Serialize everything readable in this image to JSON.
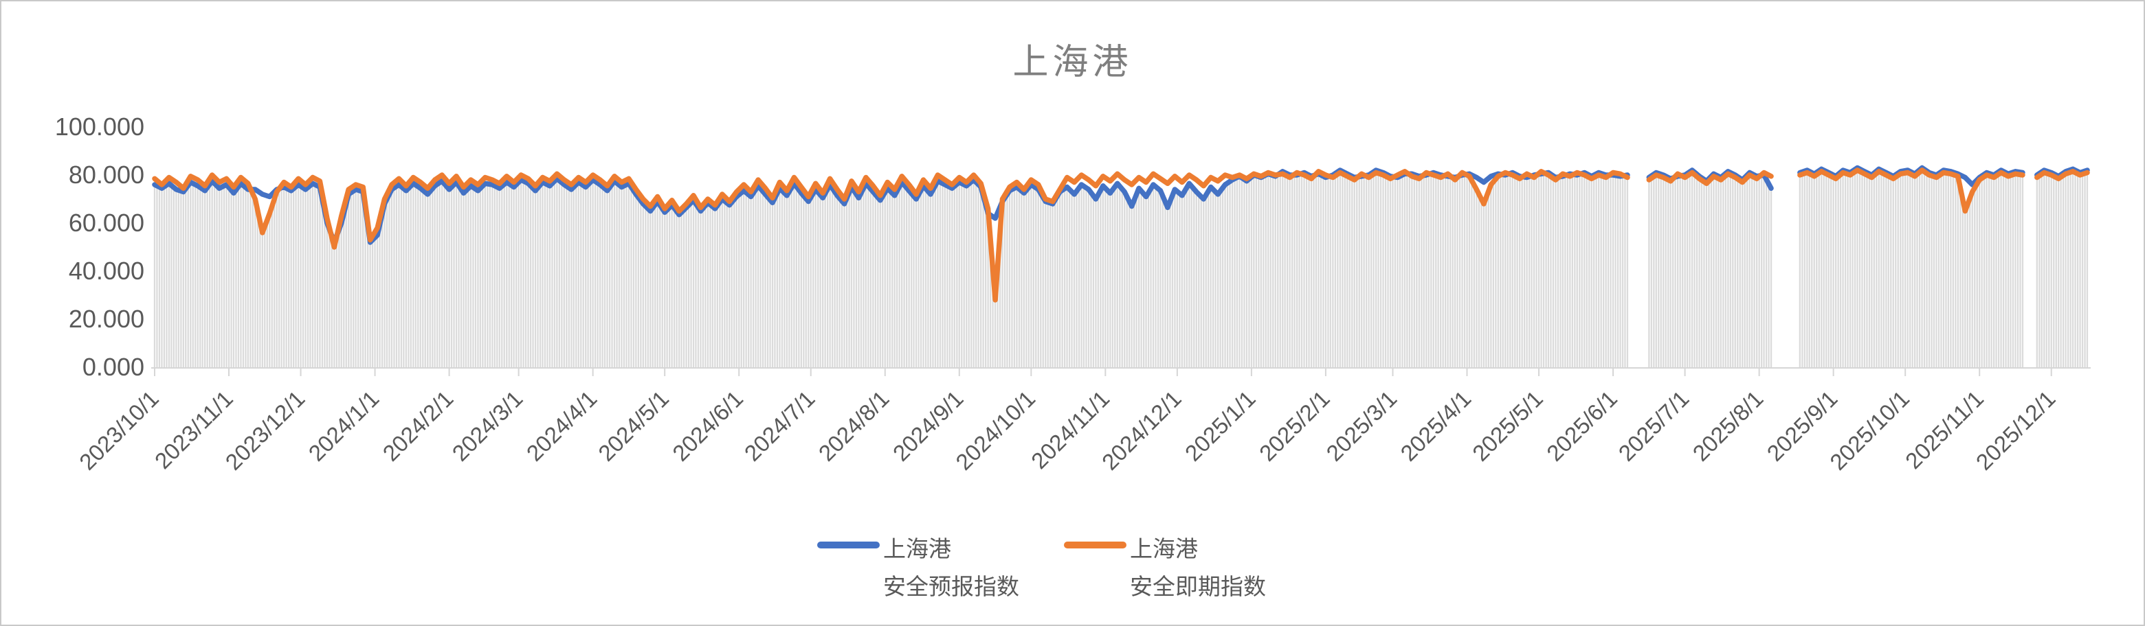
{
  "page": {
    "title": "上海港"
  },
  "legend": {
    "items": [
      {
        "line1": "上海港",
        "line2": "安全预报指数",
        "color": "#4472C4"
      },
      {
        "line1": "上海港",
        "line2": "安全即期指数",
        "color": "#ED7D31"
      }
    ]
  },
  "chart_data": {
    "type": "line",
    "title": "上海港",
    "subtitle": "",
    "xlabel": "",
    "ylabel": "",
    "ylim": [
      0,
      100
    ],
    "grid": false,
    "legend_position": "bottom",
    "start_date": "2023/10/1",
    "step_days": 3,
    "bar_color": "#DBDBDB",
    "axis_color": "#D6D6D6",
    "label_color": "#595959",
    "title_color": "#7f7f7f",
    "y_ticks": [
      {
        "label": "0.000",
        "value": 0
      },
      {
        "label": "20.000",
        "value": 20
      },
      {
        "label": "40.000",
        "value": 40
      },
      {
        "label": "60.000",
        "value": 60
      },
      {
        "label": "80.000",
        "value": 80
      },
      {
        "label": "100.000",
        "value": 100
      }
    ],
    "x_tick_labels": [
      "2023/10/1",
      "2023/11/1",
      "2023/12/1",
      "2024/1/1",
      "2024/2/1",
      "2024/3/1",
      "2024/4/1",
      "2024/5/1",
      "2024/6/1",
      "2024/7/1",
      "2024/8/1",
      "2024/9/1",
      "2024/10/1",
      "2024/11/1",
      "2024/12/1",
      "2025/1/1",
      "2025/2/1",
      "2025/3/1",
      "2025/4/1",
      "2025/5/1",
      "2025/6/1",
      "2025/7/1",
      "2025/8/1",
      "2025/9/1",
      "2025/10/1",
      "2025/11/1",
      "2025/12/1"
    ],
    "data_gaps": [
      "2025/6/10-2025/6/14",
      "2025/8/8-2025/8/15",
      "2025/11/21-2025/11/23"
    ],
    "series": [
      {
        "name": "上海港 安全预报指数",
        "color": "#4472C4",
        "values": [
          76,
          74.5,
          76.5,
          74,
          73,
          77,
          75.5,
          73.5,
          77.5,
          74.5,
          76,
          72.5,
          76.5,
          74,
          74,
          72,
          71,
          74,
          75,
          73.5,
          76,
          74,
          76.5,
          75,
          60,
          52,
          60,
          72,
          74,
          73,
          52,
          55,
          68,
          74,
          76,
          73.5,
          76.5,
          74.5,
          72,
          75.5,
          77.5,
          74,
          77,
          72.5,
          75.5,
          73.5,
          76.5,
          76,
          74.5,
          77,
          75,
          78,
          76.5,
          73.5,
          77,
          75.5,
          78.5,
          76,
          74,
          77,
          75,
          78,
          76,
          73.5,
          77.5,
          75,
          76.5,
          72,
          68,
          65,
          69,
          64.5,
          67.5,
          63.5,
          66.5,
          69.5,
          65,
          68.5,
          66,
          70,
          67.5,
          71,
          73.5,
          71,
          75.5,
          72,
          68.5,
          74.5,
          71.5,
          76.5,
          72.5,
          69,
          74,
          70.5,
          76,
          71.5,
          68,
          75,
          70.5,
          76.5,
          73,
          69.5,
          74.5,
          71.5,
          77,
          73.5,
          70,
          75.5,
          72,
          77.5,
          76,
          74.5,
          77,
          75.5,
          78,
          75,
          64,
          62,
          69,
          73.5,
          75,
          72.5,
          76,
          74,
          69,
          68,
          73,
          75,
          72,
          76,
          74,
          70,
          75.5,
          72.5,
          76.5,
          73,
          67,
          74.5,
          71,
          76,
          73.5,
          66.5,
          74,
          71.5,
          76.5,
          73,
          70,
          75,
          72,
          76,
          78,
          79.5,
          77.5,
          80,
          79,
          80.5,
          79.5,
          81.5,
          80,
          80,
          81,
          79.5,
          80.5,
          79,
          80,
          82,
          80.5,
          79,
          79.5,
          80,
          82,
          81,
          79.5,
          79,
          80.5,
          80.5,
          79.5,
          80,
          81,
          80,
          79.5,
          79,
          80,
          80.5,
          79,
          77,
          79.5,
          80.5,
          80,
          81,
          79.5,
          79,
          80,
          80.5,
          81,
          79,
          79.5,
          80.5,
          80,
          81,
          79.5,
          81,
          80,
          80,
          79.5,
          80,
          null,
          null,
          79,
          81,
          80,
          78.5,
          79.5,
          80,
          82,
          79.5,
          77.5,
          80.5,
          79,
          81.5,
          80,
          78,
          81,
          79.5,
          80,
          74.5,
          null,
          null,
          null,
          81,
          82,
          80.5,
          82.5,
          81,
          79.5,
          82,
          81,
          83,
          81.5,
          80,
          82.5,
          81,
          79.5,
          81.5,
          82,
          80.5,
          83,
          81,
          80,
          82,
          81.5,
          80.5,
          79,
          76,
          79,
          81,
          80,
          82,
          80.5,
          81.5,
          81,
          null,
          80,
          82,
          81,
          79.5,
          81.5,
          82.5,
          81,
          82
        ]
      },
      {
        "name": "上海港 安全即期指数",
        "color": "#ED7D31",
        "values": [
          78.5,
          76,
          79,
          77,
          74.5,
          79.5,
          78,
          75.5,
          80,
          77,
          78.5,
          75,
          79,
          76.5,
          70,
          56,
          64,
          73,
          77,
          75,
          78.5,
          76,
          79,
          77.5,
          62,
          50,
          63,
          74,
          76,
          75,
          53,
          58,
          70,
          76,
          78.5,
          75.5,
          79,
          77,
          74.5,
          78,
          80,
          76.5,
          79.5,
          75,
          78,
          76,
          79,
          78,
          76.5,
          79.5,
          77,
          80,
          78.5,
          75.5,
          79,
          77.5,
          80.5,
          78,
          76,
          79,
          77,
          80,
          78,
          75.5,
          79.5,
          77,
          78.5,
          74,
          70,
          67,
          71,
          66,
          69.5,
          65,
          68,
          71.5,
          66.5,
          70,
          67.5,
          72,
          69,
          73,
          76,
          73,
          78,
          74.5,
          70.5,
          77,
          73.5,
          79,
          75,
          71,
          76.5,
          72.5,
          78.5,
          74,
          70,
          77.5,
          73,
          79,
          75.5,
          71.5,
          77,
          74,
          79.5,
          76,
          72,
          78,
          74.5,
          80,
          78,
          76,
          79,
          77,
          80,
          76.5,
          66,
          28,
          70,
          75,
          77,
          74,
          78,
          76,
          70,
          69,
          74,
          79,
          77,
          80,
          78,
          75.5,
          79.5,
          77.5,
          80.5,
          78,
          76,
          79,
          77,
          80.5,
          78.5,
          76.5,
          79.5,
          77,
          80,
          78,
          75.5,
          79,
          77.5,
          80,
          79,
          80,
          78.5,
          80.5,
          79.5,
          81,
          80,
          80.5,
          79,
          81,
          80,
          78.5,
          81.5,
          80,
          79,
          81,
          79.5,
          78,
          80.5,
          79,
          81,
          80,
          78.5,
          80,
          81.5,
          79.5,
          78.5,
          81,
          80,
          79,
          80.5,
          78,
          81,
          79.5,
          74,
          68,
          76,
          79.5,
          81,
          80,
          78.5,
          80.5,
          79,
          81.5,
          80,
          78,
          80.5,
          79.5,
          81,
          80,
          78.5,
          80,
          79,
          81,
          80.5,
          79,
          null,
          null,
          78,
          80,
          79,
          77.5,
          80.5,
          79,
          81,
          78.5,
          76.5,
          79.5,
          78,
          80.5,
          79,
          77,
          80,
          78.5,
          81,
          79.5,
          null,
          null,
          null,
          80,
          81,
          79.5,
          81.5,
          80,
          78.5,
          81,
          80,
          82,
          80.5,
          79,
          81.5,
          80,
          78.5,
          80.5,
          81,
          79.5,
          82,
          80,
          79,
          81,
          80.5,
          79.5,
          65,
          73,
          78,
          80,
          79,
          81,
          79.5,
          80.5,
          80,
          null,
          79,
          81,
          80,
          78.5,
          80.5,
          81.5,
          80,
          81
        ]
      }
    ]
  }
}
